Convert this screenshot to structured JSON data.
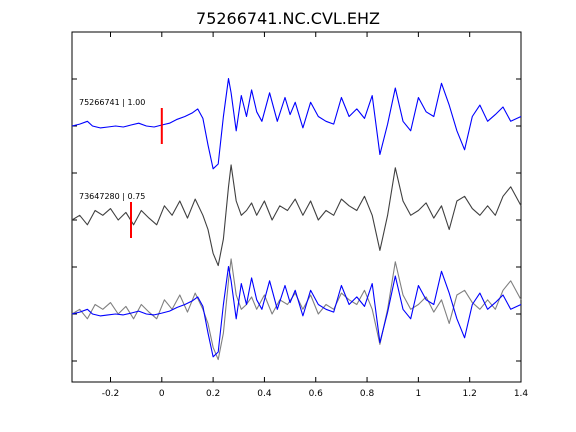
{
  "chart_data": {
    "type": "line",
    "title": "75266741.NC.CVL.EHZ",
    "xlabel": "",
    "ylabel": "",
    "xlim": [
      -0.35,
      1.4
    ],
    "x_ticks": [
      -0.2,
      0,
      0.2,
      0.4,
      0.6,
      0.8,
      1.0,
      1.2,
      1.4
    ],
    "x_tick_labels": [
      "-0.2",
      "0",
      "0.2",
      "0.4",
      "0.6",
      "0.8",
      "1",
      "1.2",
      "1.4"
    ],
    "panels": [
      {
        "label": "75266741 | 1.00",
        "pick_time": 0.0,
        "series": [
          {
            "color": "#0000ff",
            "x": [
              -0.35,
              -0.32,
              -0.29,
              -0.27,
              -0.24,
              -0.21,
              -0.18,
              -0.15,
              -0.12,
              -0.09,
              -0.06,
              -0.03,
              0.0,
              0.03,
              0.06,
              0.09,
              0.12,
              0.14,
              0.16,
              0.18,
              0.2,
              0.22,
              0.24,
              0.26,
              0.27,
              0.29,
              0.31,
              0.33,
              0.35,
              0.37,
              0.39,
              0.42,
              0.45,
              0.48,
              0.5,
              0.52,
              0.55,
              0.58,
              0.61,
              0.64,
              0.67,
              0.7,
              0.73,
              0.76,
              0.79,
              0.82,
              0.85,
              0.88,
              0.91,
              0.94,
              0.97,
              1.0,
              1.03,
              1.06,
              1.09,
              1.12,
              1.15,
              1.18,
              1.21,
              1.24,
              1.27,
              1.3,
              1.33,
              1.36,
              1.4
            ],
            "y": [
              0.0,
              0.02,
              0.05,
              0.0,
              -0.02,
              -0.01,
              0.0,
              -0.01,
              0.01,
              0.03,
              0.0,
              -0.01,
              0.01,
              0.03,
              0.07,
              0.1,
              0.14,
              0.18,
              0.08,
              -0.2,
              -0.45,
              -0.4,
              0.1,
              0.5,
              0.35,
              -0.05,
              0.32,
              0.1,
              0.38,
              0.15,
              0.05,
              0.35,
              0.05,
              0.3,
              0.12,
              0.25,
              -0.02,
              0.25,
              0.1,
              0.05,
              0.02,
              0.3,
              0.1,
              0.18,
              0.08,
              0.32,
              -0.3,
              0.02,
              0.4,
              0.05,
              -0.05,
              0.3,
              0.15,
              0.1,
              0.45,
              0.22,
              -0.05,
              -0.25,
              0.1,
              0.22,
              0.05,
              0.12,
              0.2,
              0.05,
              0.1
            ]
          }
        ]
      },
      {
        "label": "73647280 | 0.75",
        "pick_time": -0.12,
        "series": [
          {
            "color": "#404040",
            "x": [
              -0.35,
              -0.32,
              -0.29,
              -0.26,
              -0.23,
              -0.2,
              -0.17,
              -0.14,
              -0.11,
              -0.08,
              -0.05,
              -0.02,
              0.01,
              0.04,
              0.07,
              0.1,
              0.13,
              0.16,
              0.18,
              0.2,
              0.22,
              0.24,
              0.26,
              0.27,
              0.29,
              0.31,
              0.33,
              0.35,
              0.37,
              0.4,
              0.43,
              0.46,
              0.49,
              0.52,
              0.55,
              0.58,
              0.61,
              0.64,
              0.67,
              0.7,
              0.73,
              0.76,
              0.79,
              0.82,
              0.85,
              0.88,
              0.91,
              0.94,
              0.97,
              1.0,
              1.03,
              1.06,
              1.09,
              1.12,
              1.15,
              1.18,
              1.21,
              1.24,
              1.27,
              1.3,
              1.33,
              1.36,
              1.4
            ],
            "y": [
              0.0,
              0.05,
              -0.05,
              0.1,
              0.05,
              0.12,
              0.0,
              0.08,
              -0.05,
              0.1,
              0.02,
              -0.05,
              0.15,
              0.05,
              0.2,
              0.02,
              0.22,
              0.05,
              -0.1,
              -0.35,
              -0.48,
              -0.2,
              0.35,
              0.58,
              0.2,
              0.05,
              0.1,
              0.18,
              0.05,
              0.2,
              0.0,
              0.15,
              0.1,
              0.22,
              0.05,
              0.2,
              0.0,
              0.1,
              0.05,
              0.22,
              0.15,
              0.1,
              0.25,
              0.05,
              -0.32,
              0.05,
              0.55,
              0.2,
              0.05,
              0.1,
              0.18,
              0.02,
              0.15,
              -0.1,
              0.2,
              0.25,
              0.12,
              0.05,
              0.15,
              0.05,
              0.25,
              0.35,
              0.15
            ]
          }
        ]
      },
      {
        "label": "",
        "series": [
          {
            "color": "#808080",
            "x": [
              -0.35,
              -0.32,
              -0.29,
              -0.26,
              -0.23,
              -0.2,
              -0.17,
              -0.14,
              -0.11,
              -0.08,
              -0.05,
              -0.02,
              0.01,
              0.04,
              0.07,
              0.1,
              0.13,
              0.16,
              0.18,
              0.2,
              0.22,
              0.24,
              0.26,
              0.27,
              0.29,
              0.31,
              0.33,
              0.35,
              0.37,
              0.4,
              0.43,
              0.46,
              0.49,
              0.52,
              0.55,
              0.58,
              0.61,
              0.64,
              0.67,
              0.7,
              0.73,
              0.76,
              0.79,
              0.82,
              0.85,
              0.88,
              0.91,
              0.94,
              0.97,
              1.0,
              1.03,
              1.06,
              1.09,
              1.12,
              1.15,
              1.18,
              1.21,
              1.24,
              1.27,
              1.3,
              1.33,
              1.36,
              1.4
            ],
            "y": [
              0.0,
              0.05,
              -0.05,
              0.1,
              0.05,
              0.12,
              0.0,
              0.08,
              -0.05,
              0.1,
              0.02,
              -0.05,
              0.15,
              0.05,
              0.2,
              0.02,
              0.22,
              0.05,
              -0.1,
              -0.35,
              -0.48,
              -0.2,
              0.35,
              0.58,
              0.2,
              0.05,
              0.1,
              0.18,
              0.05,
              0.2,
              0.0,
              0.15,
              0.1,
              0.22,
              0.05,
              0.2,
              0.0,
              0.1,
              0.05,
              0.22,
              0.15,
              0.1,
              0.25,
              0.05,
              -0.32,
              0.05,
              0.55,
              0.2,
              0.05,
              0.1,
              0.18,
              0.02,
              0.15,
              -0.1,
              0.2,
              0.25,
              0.12,
              0.05,
              0.15,
              0.05,
              0.25,
              0.35,
              0.15
            ]
          },
          {
            "color": "#0000ff",
            "x": [
              -0.35,
              -0.32,
              -0.29,
              -0.27,
              -0.24,
              -0.21,
              -0.18,
              -0.15,
              -0.12,
              -0.09,
              -0.06,
              -0.03,
              0.0,
              0.03,
              0.06,
              0.09,
              0.12,
              0.14,
              0.16,
              0.18,
              0.2,
              0.22,
              0.24,
              0.26,
              0.27,
              0.29,
              0.31,
              0.33,
              0.35,
              0.37,
              0.39,
              0.42,
              0.45,
              0.48,
              0.5,
              0.52,
              0.55,
              0.58,
              0.61,
              0.64,
              0.67,
              0.7,
              0.73,
              0.76,
              0.79,
              0.82,
              0.85,
              0.88,
              0.91,
              0.94,
              0.97,
              1.0,
              1.03,
              1.06,
              1.09,
              1.12,
              1.15,
              1.18,
              1.21,
              1.24,
              1.27,
              1.3,
              1.33,
              1.36,
              1.4
            ],
            "y": [
              0.0,
              0.02,
              0.05,
              0.0,
              -0.02,
              -0.01,
              0.0,
              -0.01,
              0.01,
              0.03,
              0.0,
              -0.01,
              0.01,
              0.03,
              0.07,
              0.1,
              0.14,
              0.18,
              0.08,
              -0.2,
              -0.45,
              -0.4,
              0.1,
              0.5,
              0.35,
              -0.05,
              0.32,
              0.1,
              0.38,
              0.15,
              0.05,
              0.35,
              0.05,
              0.3,
              0.12,
              0.25,
              -0.02,
              0.25,
              0.1,
              0.05,
              0.02,
              0.3,
              0.1,
              0.18,
              0.08,
              0.32,
              -0.3,
              0.02,
              0.4,
              0.05,
              -0.05,
              0.3,
              0.15,
              0.1,
              0.45,
              0.22,
              -0.05,
              -0.25,
              0.1,
              0.22,
              0.05,
              0.12,
              0.2,
              0.05,
              0.1
            ]
          }
        ]
      }
    ],
    "pick_color": "#ff0000",
    "grid": false
  }
}
